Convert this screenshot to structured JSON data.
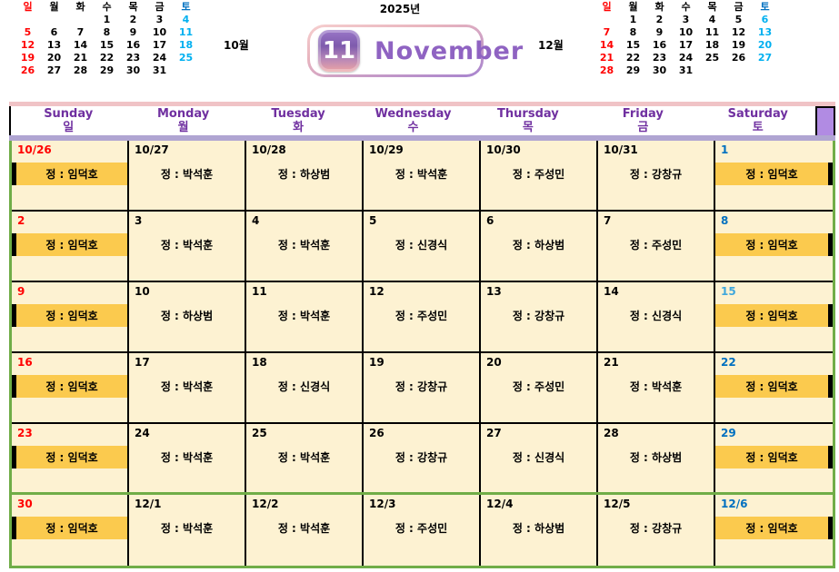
{
  "title": {
    "year": "2025년",
    "month_number": "11",
    "month_name": "November"
  },
  "mini_calendars": {
    "october": {
      "label": "10월",
      "day_headers": [
        "일",
        "월",
        "화",
        "수",
        "목",
        "금",
        "토"
      ],
      "weeks": [
        [
          "",
          "",
          "",
          "1",
          "2",
          "3",
          "4"
        ],
        [
          "5",
          "6",
          "7",
          "8",
          "9",
          "10",
          "11"
        ],
        [
          "12",
          "13",
          "14",
          "15",
          "16",
          "17",
          "18"
        ],
        [
          "19",
          "20",
          "21",
          "22",
          "23",
          "24",
          "25"
        ],
        [
          "26",
          "27",
          "28",
          "29",
          "30",
          "31",
          ""
        ]
      ]
    },
    "december": {
      "label": "12월",
      "day_headers": [
        "일",
        "월",
        "화",
        "수",
        "목",
        "금",
        "토"
      ],
      "weeks": [
        [
          "",
          "1",
          "2",
          "3",
          "4",
          "5",
          "6"
        ],
        [
          "7",
          "8",
          "9",
          "10",
          "11",
          "12",
          "13"
        ],
        [
          "14",
          "15",
          "16",
          "17",
          "18",
          "19",
          "20"
        ],
        [
          "21",
          "22",
          "23",
          "24",
          "25",
          "26",
          "27"
        ],
        [
          "28",
          "29",
          "30",
          "31",
          "",
          "",
          ""
        ]
      ]
    }
  },
  "main_calendar": {
    "day_headers": [
      {
        "en": "Sunday",
        "ko": "일"
      },
      {
        "en": "Monday",
        "ko": "월"
      },
      {
        "en": "Tuesday",
        "ko": "화"
      },
      {
        "en": "Wednesday",
        "ko": "수"
      },
      {
        "en": "Thursday",
        "ko": "목"
      },
      {
        "en": "Friday",
        "ko": "금"
      },
      {
        "en": "Saturday",
        "ko": "토"
      }
    ],
    "weeks": [
      [
        {
          "date": "10/26",
          "color": "red",
          "name": "정 : 임덕호",
          "highlight": true
        },
        {
          "date": "10/27",
          "color": "black",
          "name": "정 : 박석훈",
          "highlight": false
        },
        {
          "date": "10/28",
          "color": "black",
          "name": "정 : 하상범",
          "highlight": false
        },
        {
          "date": "10/29",
          "color": "black",
          "name": "정 : 박석훈",
          "highlight": false
        },
        {
          "date": "10/30",
          "color": "black",
          "name": "정 : 주성민",
          "highlight": false
        },
        {
          "date": "10/31",
          "color": "black",
          "name": "정 : 강창규",
          "highlight": false
        },
        {
          "date": "1",
          "color": "blue",
          "name": "정 : 임덕호",
          "highlight": true
        }
      ],
      [
        {
          "date": "2",
          "color": "red",
          "name": "정 : 임덕호",
          "highlight": true
        },
        {
          "date": "3",
          "color": "black",
          "name": "정 : 박석훈",
          "highlight": false
        },
        {
          "date": "4",
          "color": "black",
          "name": "정 : 박석훈",
          "highlight": false
        },
        {
          "date": "5",
          "color": "black",
          "name": "정 : 신경식",
          "highlight": false
        },
        {
          "date": "6",
          "color": "black",
          "name": "정 : 하상범",
          "highlight": false
        },
        {
          "date": "7",
          "color": "black",
          "name": "정 : 주성민",
          "highlight": false
        },
        {
          "date": "8",
          "color": "blue",
          "name": "정 : 임덕호",
          "highlight": true
        }
      ],
      [
        {
          "date": "9",
          "color": "red",
          "name": "정 : 임덕호",
          "highlight": true
        },
        {
          "date": "10",
          "color": "black",
          "name": "정 : 하상범",
          "highlight": false
        },
        {
          "date": "11",
          "color": "black",
          "name": "정 : 박석훈",
          "highlight": false
        },
        {
          "date": "12",
          "color": "black",
          "name": "정 : 주성민",
          "highlight": false
        },
        {
          "date": "13",
          "color": "black",
          "name": "정 : 강창규",
          "highlight": false
        },
        {
          "date": "14",
          "color": "black",
          "name": "정 : 신경식",
          "highlight": false
        },
        {
          "date": "15",
          "color": "lightblue",
          "name": "정 : 임덕호",
          "highlight": true
        }
      ],
      [
        {
          "date": "16",
          "color": "red",
          "name": "정 : 임덕호",
          "highlight": true
        },
        {
          "date": "17",
          "color": "black",
          "name": "정 : 박석훈",
          "highlight": false
        },
        {
          "date": "18",
          "color": "black",
          "name": "정 : 신경식",
          "highlight": false
        },
        {
          "date": "19",
          "color": "black",
          "name": "정 : 강창규",
          "highlight": false
        },
        {
          "date": "20",
          "color": "black",
          "name": "정 : 주성민",
          "highlight": false
        },
        {
          "date": "21",
          "color": "black",
          "name": "정 : 박석훈",
          "highlight": false
        },
        {
          "date": "22",
          "color": "blue",
          "name": "정 : 임덕호",
          "highlight": true
        }
      ],
      [
        {
          "date": "23",
          "color": "red",
          "name": "정 : 임덕호",
          "highlight": true
        },
        {
          "date": "24",
          "color": "black",
          "name": "정 : 박석훈",
          "highlight": false
        },
        {
          "date": "25",
          "color": "black",
          "name": "정 : 박석훈",
          "highlight": false
        },
        {
          "date": "26",
          "color": "black",
          "name": "정 : 강창규",
          "highlight": false
        },
        {
          "date": "27",
          "color": "black",
          "name": "정 : 신경식",
          "highlight": false
        },
        {
          "date": "28",
          "color": "black",
          "name": "정 : 하상범",
          "highlight": false
        },
        {
          "date": "29",
          "color": "blue",
          "name": "정 : 임덕호",
          "highlight": true
        }
      ],
      [
        {
          "date": "30",
          "color": "red",
          "name": "정 : 임덕호",
          "highlight": true
        },
        {
          "date": "12/1",
          "color": "black",
          "name": "정 : 박석훈",
          "highlight": false
        },
        {
          "date": "12/2",
          "color": "black",
          "name": "정 : 박석훈",
          "highlight": false
        },
        {
          "date": "12/3",
          "color": "black",
          "name": "정 : 주성민",
          "highlight": false
        },
        {
          "date": "12/4",
          "color": "black",
          "name": "정 : 하상범",
          "highlight": false
        },
        {
          "date": "12/5",
          "color": "black",
          "name": "정 : 강창규",
          "highlight": false
        },
        {
          "date": "12/6",
          "color": "blue",
          "name": "정 : 임덕호",
          "highlight": true
        }
      ]
    ]
  },
  "colors": {
    "red": "#FF0000",
    "saturday_blue": "#0070C0",
    "saturday_lightblue": "#3FA7DC",
    "mini_saturday_cyan": "#00B0F0",
    "header_purple": "#7030A0",
    "cell_cream": "#FDF2D2",
    "band_yellow": "#FBCA4E",
    "pink_strip": "#F0C3C6",
    "purple_strip": "#B0A5D2",
    "purple_block": "#B18BE3",
    "green_border": "#70AD47",
    "badge_text_purple": "#8F63C2"
  }
}
